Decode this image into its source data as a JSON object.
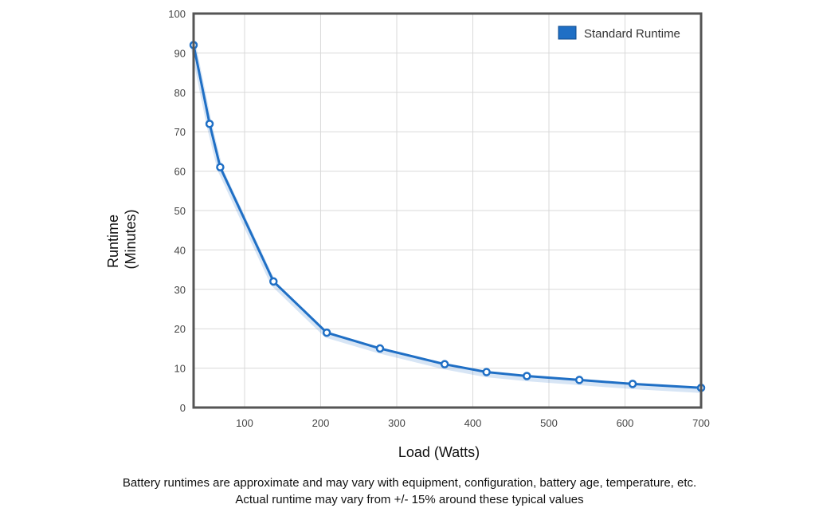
{
  "chart_data": {
    "type": "line",
    "xlabel": "Load (Watts)",
    "ylabel_lines": [
      "Runtime",
      "(Minutes)"
    ],
    "xlim": [
      33,
      700
    ],
    "ylim": [
      0,
      100
    ],
    "x_ticks": [
      100,
      200,
      300,
      400,
      500,
      600,
      700
    ],
    "y_ticks": [
      0,
      10,
      20,
      30,
      40,
      50,
      60,
      70,
      80,
      90,
      100
    ],
    "grid": true,
    "legend_position": "top-right",
    "series": [
      {
        "name": "Standard Runtime",
        "color": "#1f6fc5",
        "x": [
          33,
          54,
          68,
          138,
          208,
          278,
          363,
          418,
          471,
          540,
          610,
          700
        ],
        "y": [
          92,
          72,
          61,
          32,
          19,
          15,
          11,
          9,
          8,
          7,
          6,
          5
        ]
      }
    ]
  },
  "footnotes": [
    "Battery runtimes are approximate and may vary with equipment, configuration, battery age, temperature, etc.",
    "Actual runtime may vary from +/- 15% around these typical values"
  ]
}
